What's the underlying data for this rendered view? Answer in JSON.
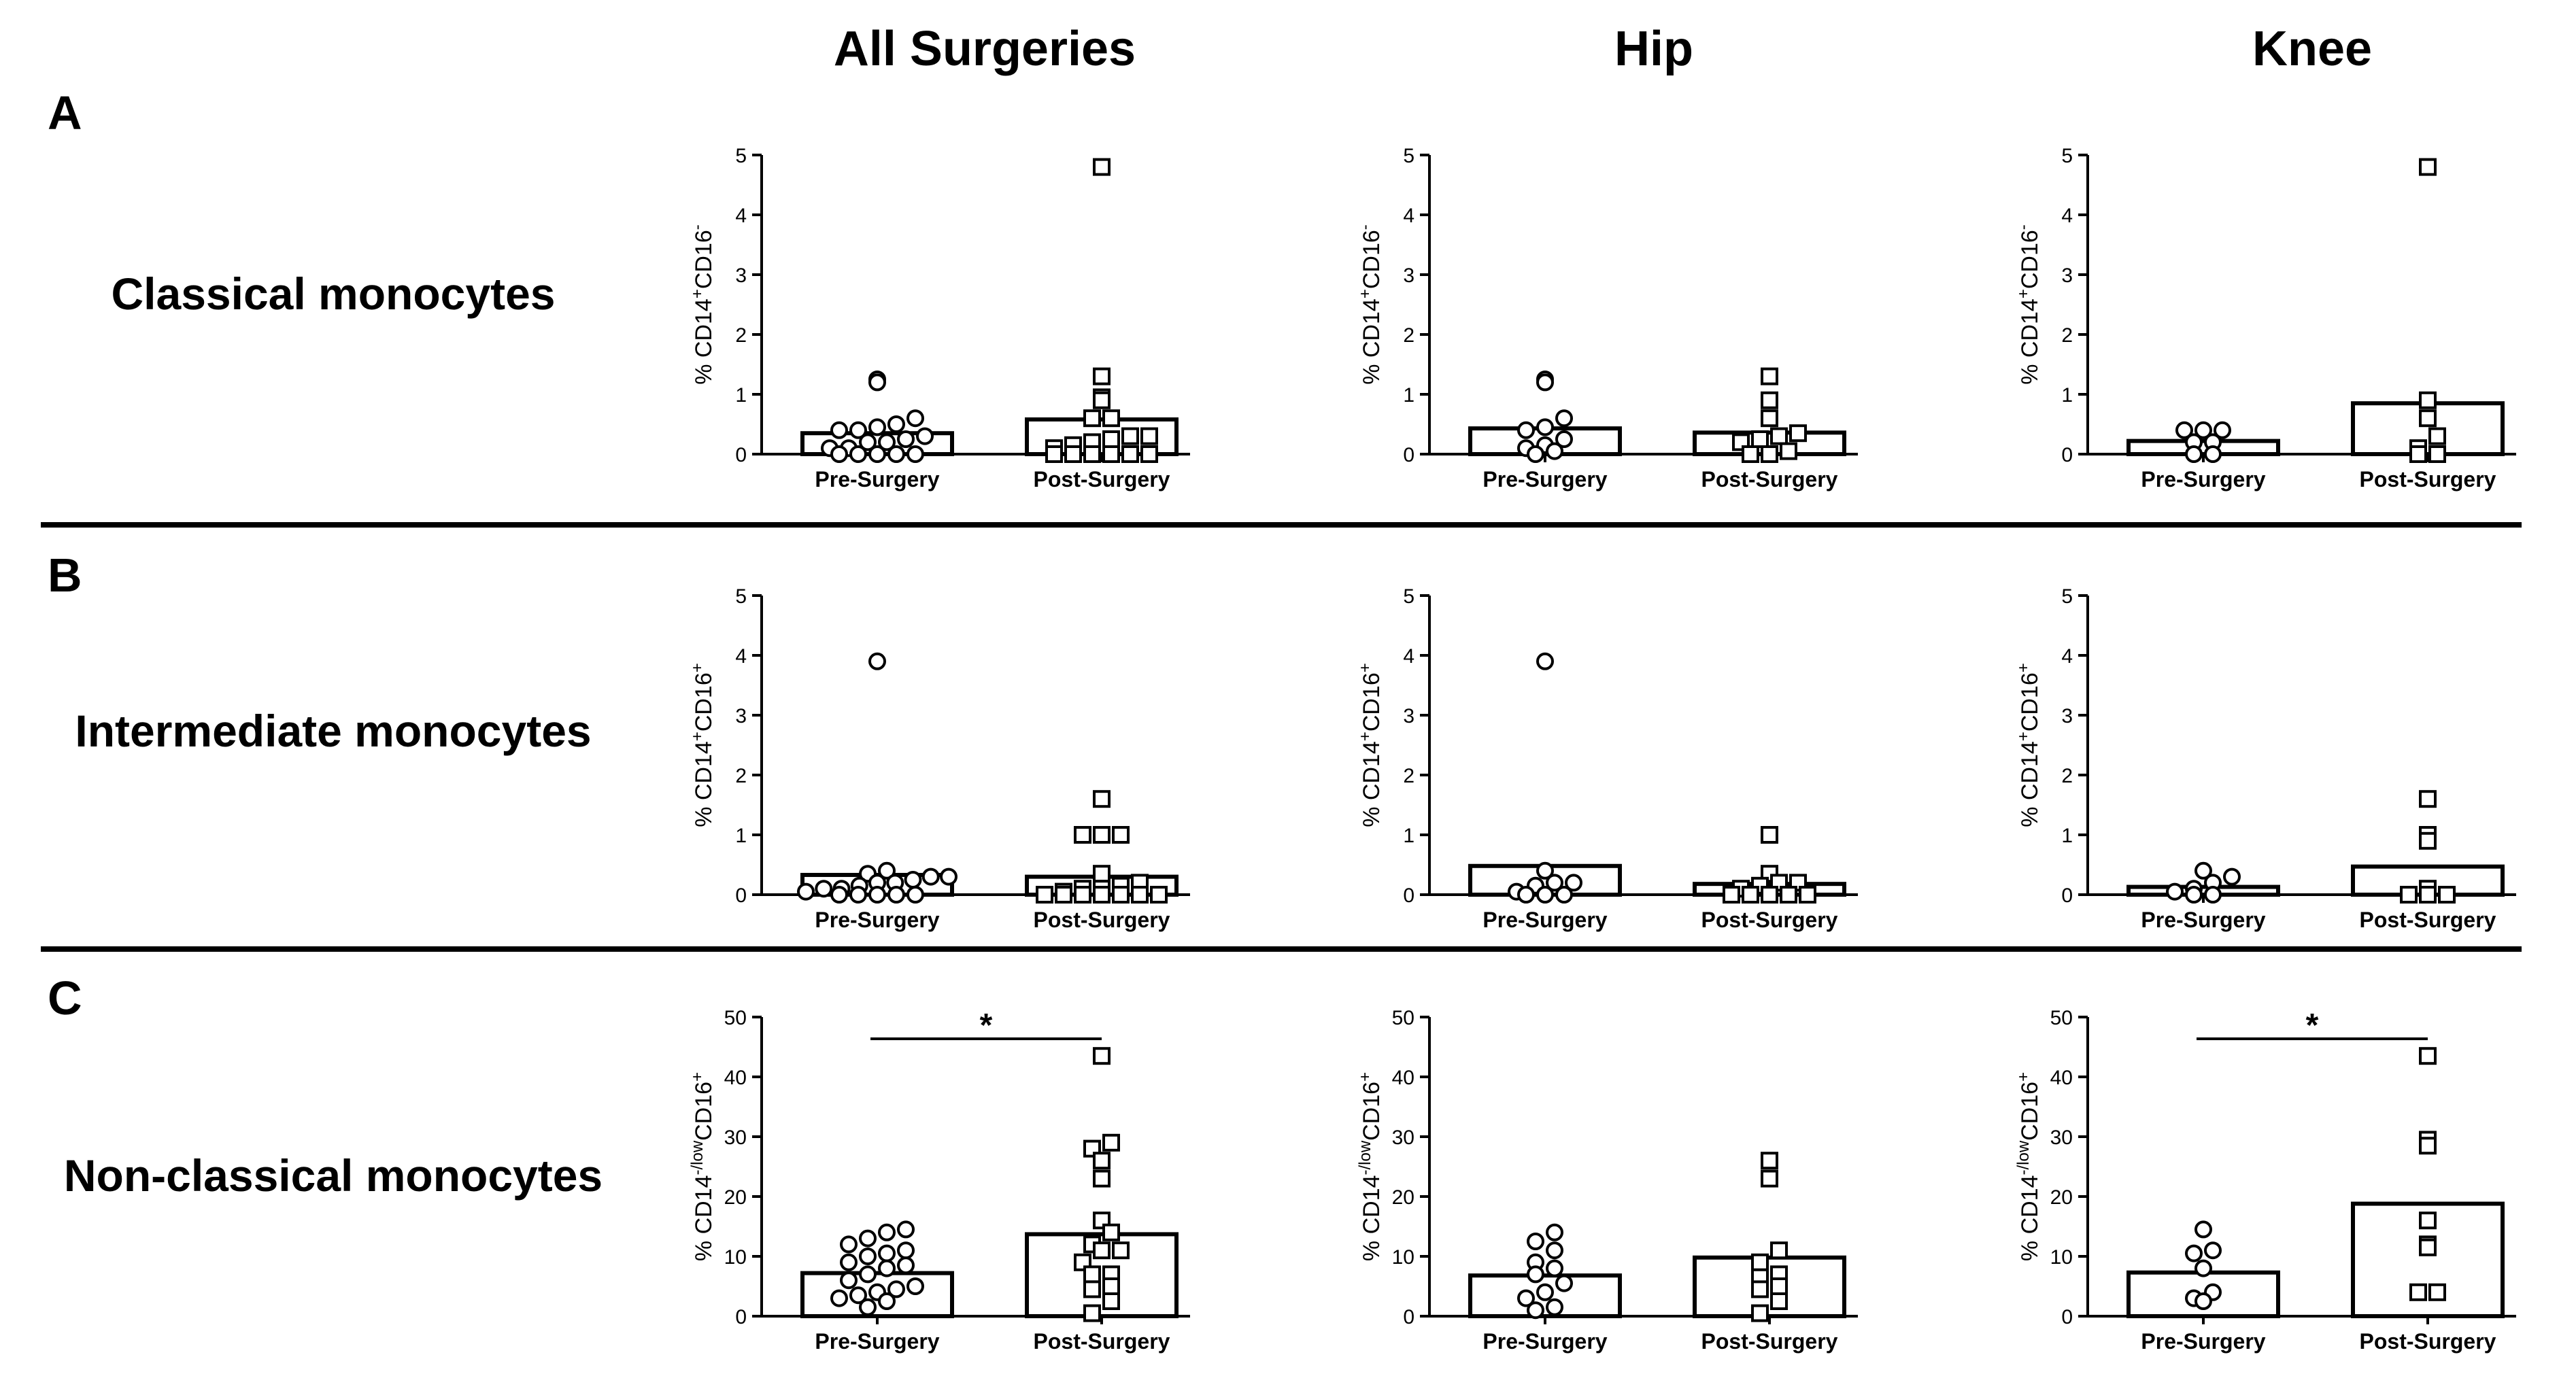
{
  "columns": [
    "All Surgeries",
    "Hip",
    "Knee"
  ],
  "rows": [
    {
      "letter": "A",
      "label": "Classical monocytes"
    },
    {
      "letter": "B",
      "label": "Intermediate monocytes"
    },
    {
      "letter": "C",
      "label": "Non-classical monocytes"
    }
  ],
  "chart_data": [
    {
      "type": "bar",
      "panel": "A-All Surgeries",
      "categories": [
        "Pre-Surgery",
        "Post-Surgery"
      ],
      "ylabel": "% CD14+CD16-",
      "ylim": [
        0,
        5
      ],
      "yticks": [
        0,
        1,
        2,
        3,
        4,
        5
      ],
      "bars": [
        0.35,
        0.58
      ],
      "points": [
        [
          0.0,
          0.0,
          0.0,
          0.0,
          0.0,
          0.1,
          0.1,
          0.2,
          0.2,
          0.25,
          0.3,
          0.4,
          0.4,
          0.45,
          0.5,
          0.6,
          1.2,
          1.25
        ],
        [
          0.0,
          0.0,
          0.0,
          0.0,
          0.0,
          0.0,
          0.1,
          0.15,
          0.2,
          0.25,
          0.3,
          0.3,
          0.6,
          0.6,
          0.9,
          0.95,
          1.3,
          4.8
        ]
      ],
      "significance": ""
    },
    {
      "type": "bar",
      "panel": "A-Hip",
      "categories": [
        "Pre-Surgery",
        "Post-Surgery"
      ],
      "ylabel": "% CD14+CD16-",
      "ylim": [
        0,
        5
      ],
      "yticks": [
        0,
        1,
        2,
        3,
        4,
        5
      ],
      "bars": [
        0.43,
        0.36
      ],
      "points": [
        [
          0.0,
          0.05,
          0.1,
          0.15,
          0.25,
          0.4,
          0.45,
          0.6,
          1.2,
          1.25
        ],
        [
          0.0,
          0.0,
          0.05,
          0.2,
          0.25,
          0.3,
          0.35,
          0.6,
          0.9,
          1.3
        ]
      ],
      "significance": ""
    },
    {
      "type": "bar",
      "panel": "A-Knee",
      "categories": [
        "Pre-Surgery",
        "Post-Surgery"
      ],
      "ylabel": "% CD14+CD16-",
      "ylim": [
        0,
        5
      ],
      "yticks": [
        0,
        1,
        2,
        3,
        4,
        5
      ],
      "bars": [
        0.22,
        0.85
      ],
      "points": [
        [
          0.0,
          0.0,
          0.2,
          0.2,
          0.4,
          0.4,
          0.4
        ],
        [
          0.0,
          0.0,
          0.1,
          0.3,
          0.6,
          0.9,
          4.8
        ]
      ],
      "significance": ""
    },
    {
      "type": "bar",
      "panel": "B-All Surgeries",
      "categories": [
        "Pre-Surgery",
        "Post-Surgery"
      ],
      "ylabel": "% CD14+CD16+",
      "ylim": [
        0,
        5
      ],
      "yticks": [
        0,
        1,
        2,
        3,
        4,
        5
      ],
      "bars": [
        0.33,
        0.3
      ],
      "points": [
        [
          0.0,
          0.0,
          0.0,
          0.0,
          0.0,
          0.05,
          0.1,
          0.1,
          0.15,
          0.2,
          0.2,
          0.25,
          0.3,
          0.3,
          0.35,
          0.4,
          3.9
        ],
        [
          0.0,
          0.0,
          0.0,
          0.0,
          0.0,
          0.0,
          0.0,
          0.05,
          0.1,
          0.1,
          0.15,
          0.2,
          0.35,
          1.0,
          1.0,
          1.0,
          1.6
        ]
      ],
      "significance": ""
    },
    {
      "type": "bar",
      "panel": "B-Hip",
      "categories": [
        "Pre-Surgery",
        "Post-Surgery"
      ],
      "ylabel": "% CD14+CD16+",
      "ylim": [
        0,
        5
      ],
      "yticks": [
        0,
        1,
        2,
        3,
        4,
        5
      ],
      "bars": [
        0.48,
        0.18
      ],
      "points": [
        [
          0.0,
          0.0,
          0.0,
          0.05,
          0.15,
          0.2,
          0.2,
          0.4,
          3.9
        ],
        [
          0.0,
          0.0,
          0.0,
          0.0,
          0.0,
          0.1,
          0.15,
          0.2,
          0.2,
          0.35,
          1.0
        ]
      ],
      "significance": ""
    },
    {
      "type": "bar",
      "panel": "B-Knee",
      "categories": [
        "Pre-Surgery",
        "Post-Surgery"
      ],
      "ylabel": "% CD14+CD16+",
      "ylim": [
        0,
        5
      ],
      "yticks": [
        0,
        1,
        2,
        3,
        4,
        5
      ],
      "bars": [
        0.13,
        0.47
      ],
      "points": [
        [
          0.0,
          0.0,
          0.05,
          0.1,
          0.2,
          0.3,
          0.4
        ],
        [
          0.0,
          0.0,
          0.0,
          0.1,
          0.9,
          1.0,
          1.6
        ]
      ],
      "significance": ""
    },
    {
      "type": "bar",
      "panel": "C-All Surgeries",
      "categories": [
        "Pre-Surgery",
        "Post-Surgery"
      ],
      "ylabel": "% CD14-/lowCD16+",
      "ylim": [
        0,
        50
      ],
      "yticks": [
        0,
        10,
        20,
        30,
        40,
        50
      ],
      "bars": [
        7.2,
        13.7
      ],
      "points": [
        [
          1.5,
          2.5,
          3,
          3.5,
          4,
          4.5,
          5,
          6,
          7,
          8,
          8.5,
          9,
          10,
          10.5,
          11,
          12,
          13,
          14,
          14.5
        ],
        [
          0.5,
          2.5,
          4.5,
          5,
          7,
          7,
          9,
          11,
          11,
          12,
          14,
          16,
          23,
          26,
          28,
          29,
          43.5
        ]
      ],
      "significance": "*"
    },
    {
      "type": "bar",
      "panel": "C-Hip",
      "categories": [
        "Pre-Surgery",
        "Post-Surgery"
      ],
      "ylabel": "% CD14-/lowCD16+",
      "ylim": [
        0,
        50
      ],
      "yticks": [
        0,
        10,
        20,
        30,
        40,
        50
      ],
      "bars": [
        6.8,
        9.8
      ],
      "points": [
        [
          1,
          1.5,
          3,
          4,
          5.5,
          7,
          8,
          9,
          11,
          12.5,
          14
        ],
        [
          0.5,
          2.5,
          4.5,
          5,
          6.5,
          7,
          9,
          11,
          23,
          26
        ]
      ],
      "significance": ""
    },
    {
      "type": "bar",
      "panel": "C-Knee",
      "categories": [
        "Pre-Surgery",
        "Post-Surgery"
      ],
      "ylabel": "% CD14-/lowCD16+",
      "ylim": [
        0,
        50
      ],
      "yticks": [
        0,
        10,
        20,
        30,
        40,
        50
      ],
      "bars": [
        7.3,
        18.8
      ],
      "points": [
        [
          2.5,
          3,
          4,
          8,
          10.5,
          11,
          14.5
        ],
        [
          4,
          4,
          11.5,
          12,
          16,
          28.5,
          29.5,
          43.5
        ]
      ],
      "significance": "*"
    }
  ]
}
